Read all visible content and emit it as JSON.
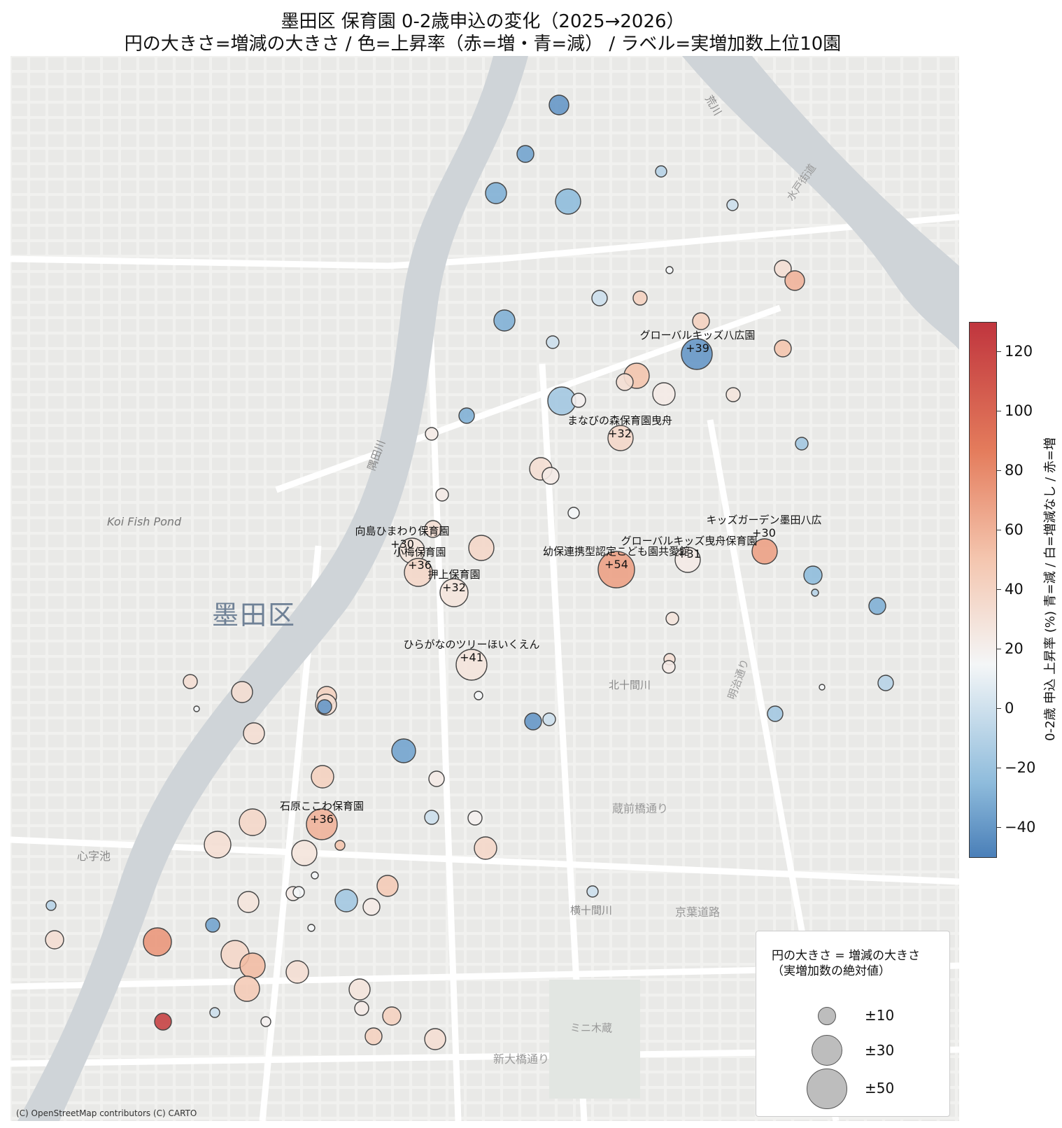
{
  "title_line1": "墨田区 保育園 0-2歳申込の変化（2025→2026）",
  "title_line2": "円の大きさ=増減の大きさ / 色=上昇率（赤=増・青=減） / ラベル=実増加数上位10園",
  "attribution": "(C) OpenStreetMap contributors (C) CARTO",
  "map_labels": {
    "ward": "墨田区",
    "koi_pond": "Koi Fish Pond",
    "shinjiike": "心字池",
    "kitajukkenkawa": "北十間川",
    "yokojukkenkawa": "横十間川",
    "keiyo_doro": "京葉道路",
    "kuramae": "蔵前橋通り",
    "shinohashi": "新大橋通り",
    "sumidagawa": "隅田川",
    "arakawa": "荒川",
    "meiji": "明治通り",
    "mito": "水戸街道",
    "koto_mini": "ミニ木蔵"
  },
  "legend": {
    "title_line1": "円の大きさ = 増減の大きさ",
    "title_line2": "（実増加数の絶対値）",
    "items": [
      {
        "label": "±10",
        "value": 10
      },
      {
        "label": "±30",
        "value": 30
      },
      {
        "label": "±50",
        "value": 50
      }
    ]
  },
  "colorbar": {
    "label": "0-2歳 申込 上昇率 (%)   青=減 / 白=増減なし / 赤=増",
    "ticks": [
      "120",
      "100",
      "80",
      "60",
      "40",
      "20",
      "0",
      "−20",
      "−40"
    ],
    "range": [
      -50,
      130
    ]
  },
  "top10": [
    {
      "name": "グローバルキッズ八広園",
      "value": "+39"
    },
    {
      "name": "まなびの森保育園曳舟",
      "value": "+32"
    },
    {
      "name": "キッズガーデン墨田八広",
      "value": "+30"
    },
    {
      "name": "向島ひまわり保育園",
      "value": "+30"
    },
    {
      "name": "小梅保育園",
      "value": "+36"
    },
    {
      "name": "押上保育園",
      "value": "+32"
    },
    {
      "name": "幼保連携型認定こども園共愛館",
      "value": "+54"
    },
    {
      "name": "グローバルキッズ曳舟保育園",
      "value": "+31"
    },
    {
      "name": "ひらがなのツリーほいくえん",
      "value": "+41"
    },
    {
      "name": "石原ここわ保育園",
      "value": "+36"
    }
  ],
  "colors": {
    "neg_strong": "#4a7fb8",
    "neutral": "#f4f6f7",
    "pos_strong": "#c0353e"
  }
}
